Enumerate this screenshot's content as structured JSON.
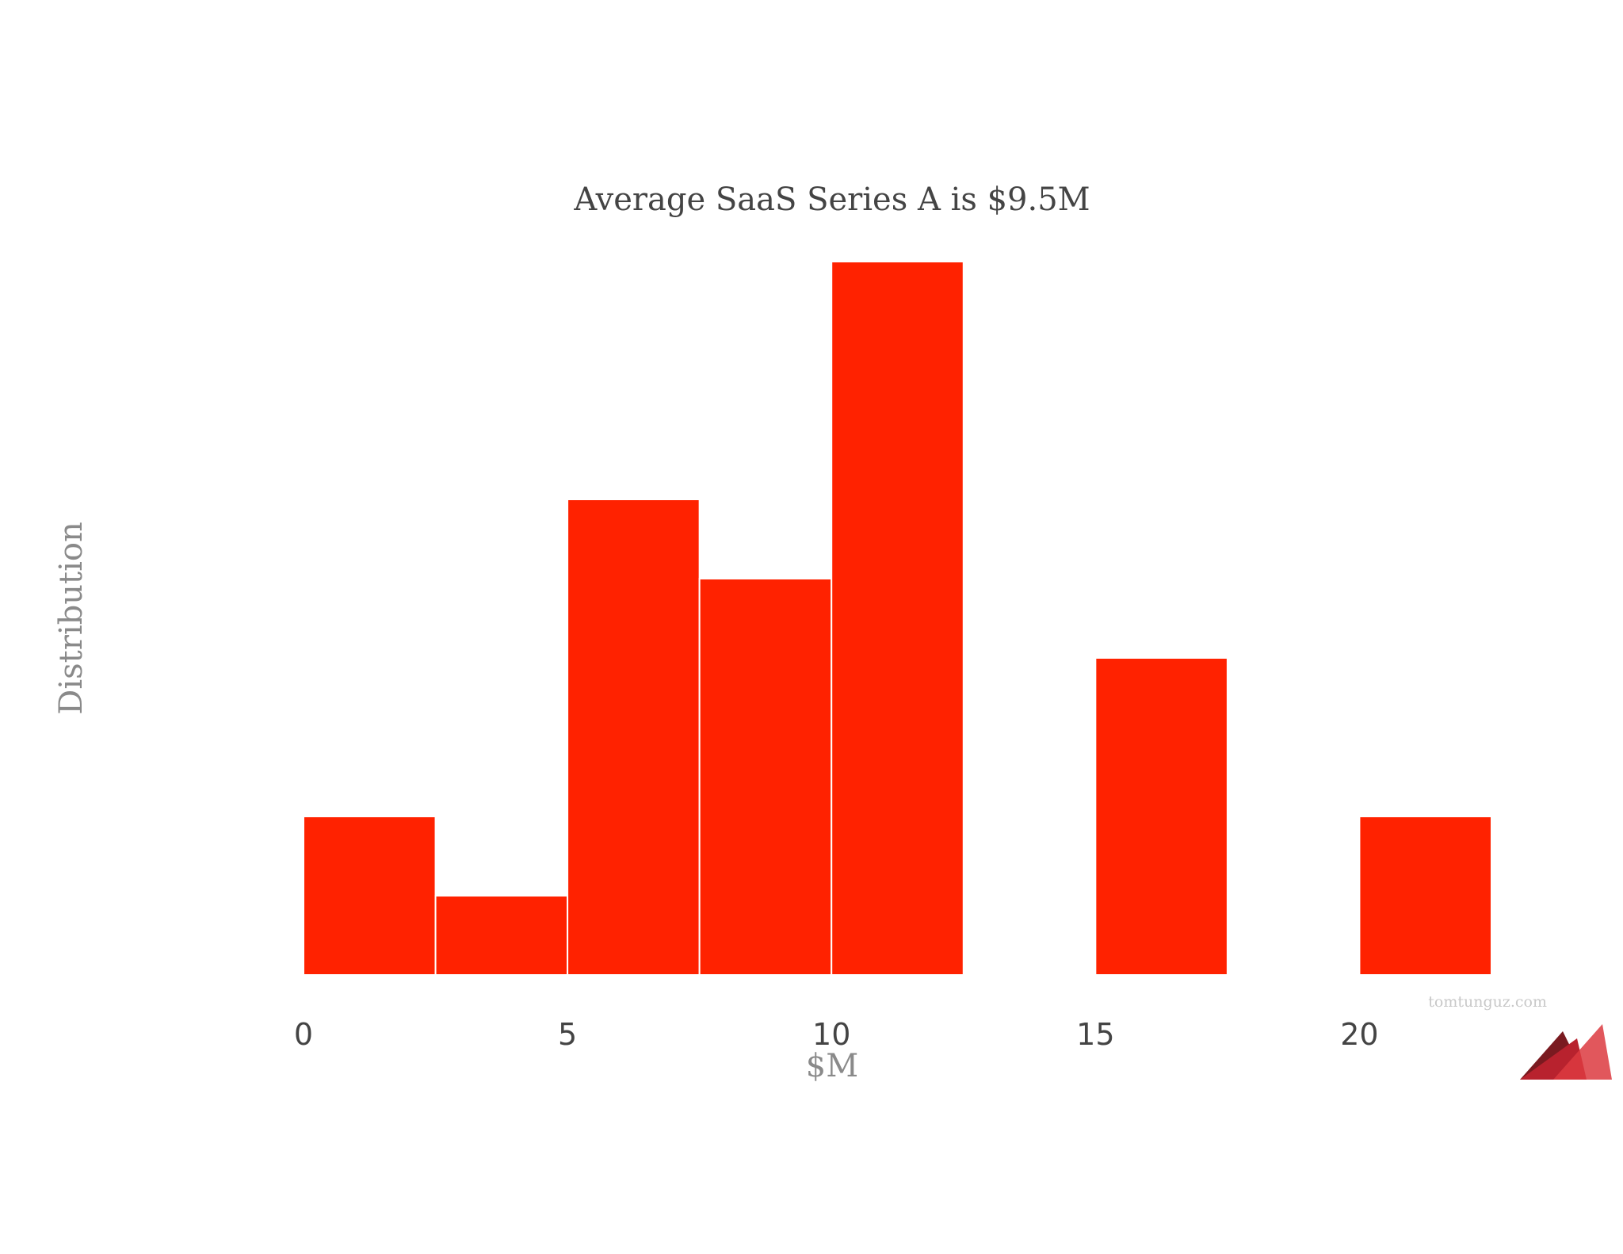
{
  "chart_data": {
    "type": "bar",
    "title": "Average SaaS Series A is $9.5M",
    "xlabel": "$M",
    "ylabel": "Distribution",
    "xlim": [
      0,
      22.5
    ],
    "ylim": [
      0,
      4.5
    ],
    "x_ticks": [
      "0",
      "5",
      "10",
      "15",
      "20"
    ],
    "x_tick_values": [
      0,
      5,
      10,
      15,
      20
    ],
    "bins": [
      {
        "x0": 0,
        "x1": 2.5,
        "value": 1
      },
      {
        "x0": 2.5,
        "x1": 5,
        "value": 0.5
      },
      {
        "x0": 5,
        "x1": 7.5,
        "value": 3
      },
      {
        "x0": 7.5,
        "x1": 10,
        "value": 2.5
      },
      {
        "x0": 10,
        "x1": 12.5,
        "value": 4.5
      },
      {
        "x0": 15,
        "x1": 17.5,
        "value": 2
      },
      {
        "x0": 20,
        "x1": 22.5,
        "value": 1
      }
    ],
    "bar_color": "#ff2200",
    "grid": false,
    "legend": "none"
  },
  "watermark": "tomtunguz.com",
  "logo": {
    "name": "tomtunguz-logo",
    "colors": [
      "#7a1a20",
      "#b8222e",
      "#dc3a40"
    ]
  }
}
